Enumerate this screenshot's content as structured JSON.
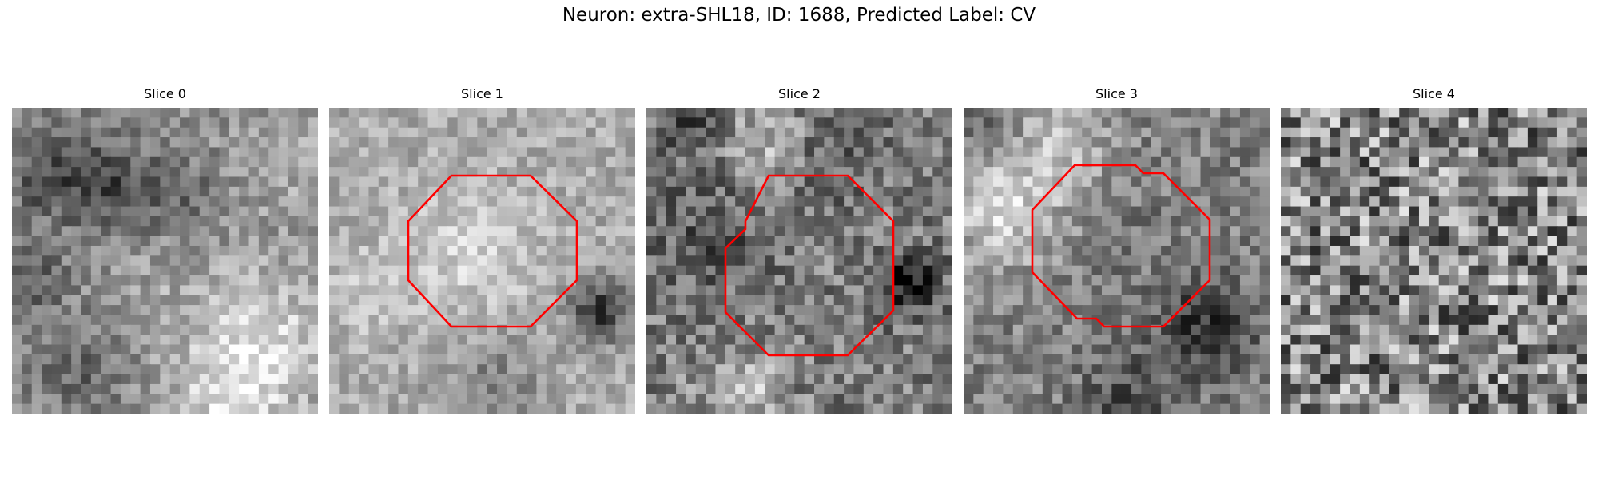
{
  "figure": {
    "title": "Neuron: extra-SHL18, ID: 1688, Predicted Label: CV",
    "outline_color": "#ff0000",
    "colormap": "gray"
  },
  "panels": [
    {
      "title": "Slice 0",
      "has_outline": false,
      "outline_shape": "none"
    },
    {
      "title": "Slice 1",
      "has_outline": true,
      "outline_shape": "octagon"
    },
    {
      "title": "Slice 2",
      "has_outline": true,
      "outline_shape": "octagon"
    },
    {
      "title": "Slice 3",
      "has_outline": true,
      "outline_shape": "octagon"
    },
    {
      "title": "Slice 4",
      "has_outline": false,
      "outline_shape": "none"
    }
  ]
}
